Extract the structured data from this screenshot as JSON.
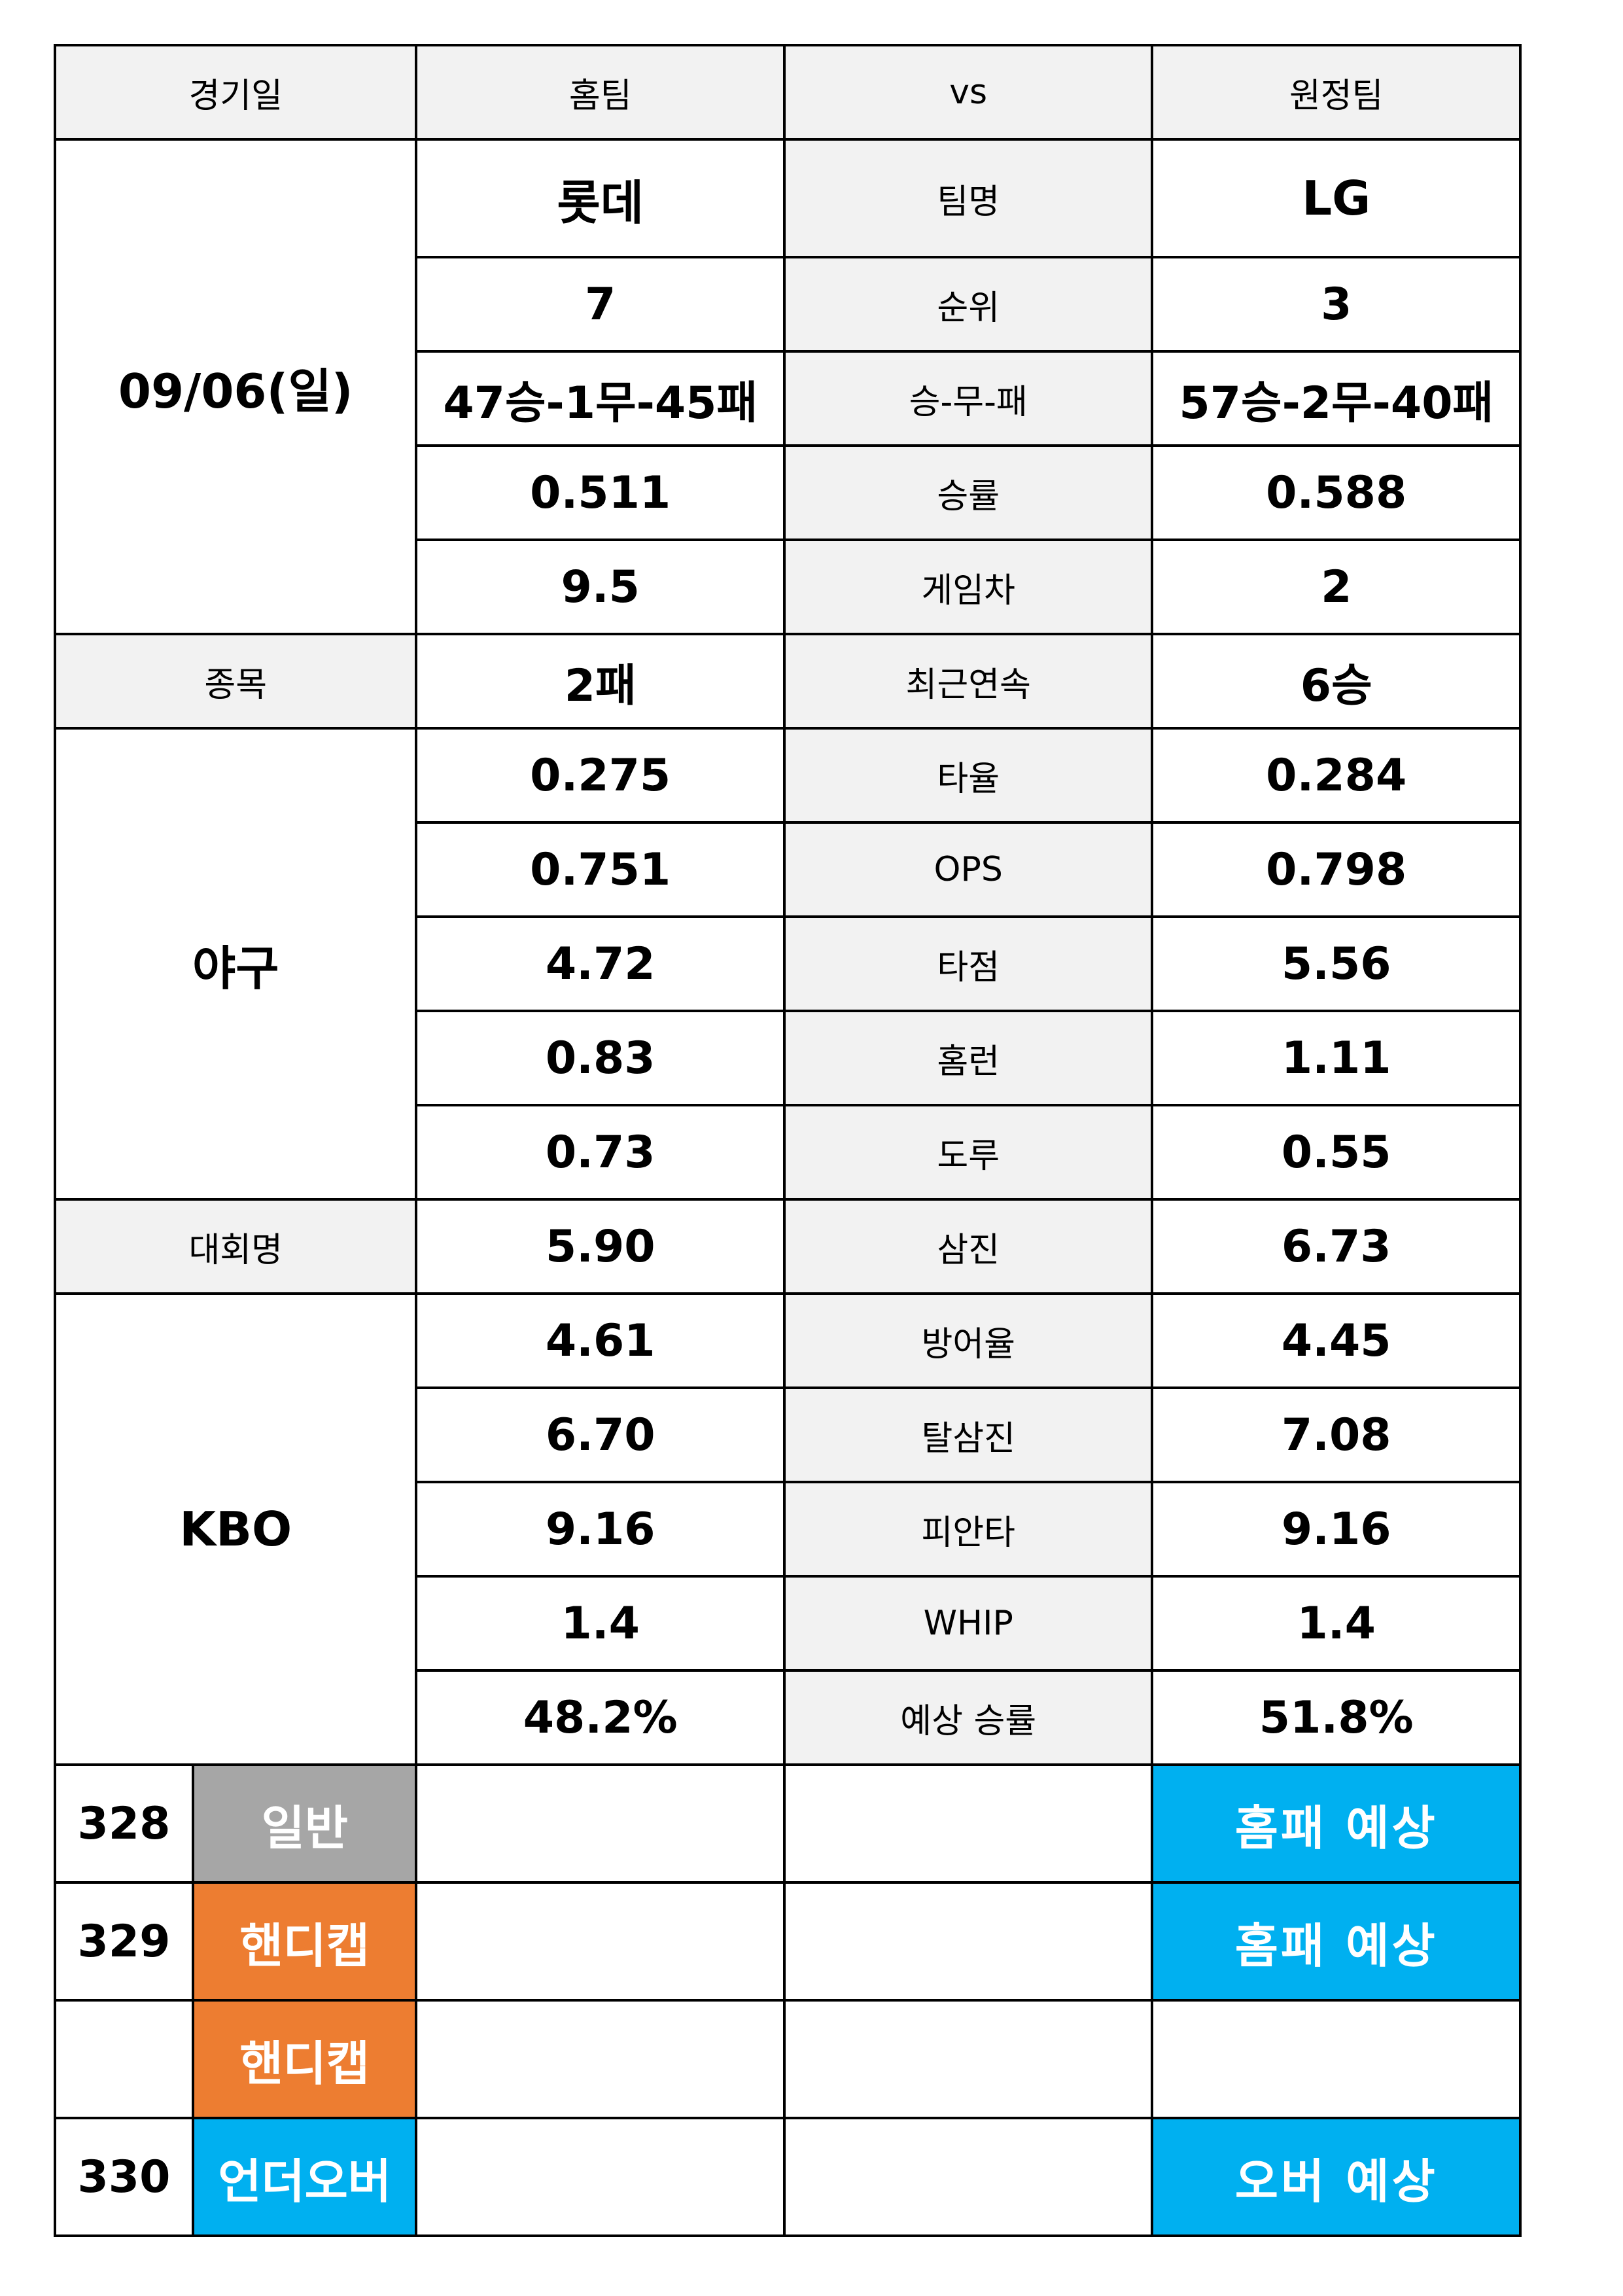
{
  "header": {
    "date": "경기일",
    "home": "홈팀",
    "vs": "vs",
    "away": "원정팀"
  },
  "match": {
    "date": "09/06(일)",
    "sport_label": "종목",
    "sport": "야구",
    "league_label": "대회명",
    "league": "KBO"
  },
  "stats": [
    {
      "home": "롯데",
      "label": "팀명",
      "away": "LG"
    },
    {
      "home": "7",
      "label": "순위",
      "away": "3"
    },
    {
      "home": "47승-1무-45패",
      "label": "승-무-패",
      "away": "57승-2무-40패"
    },
    {
      "home": "0.511",
      "label": "승률",
      "away": "0.588"
    },
    {
      "home": "9.5",
      "label": "게임차",
      "away": "2"
    },
    {
      "home": "2패",
      "label": "최근연속",
      "away": "6승"
    },
    {
      "home": "0.275",
      "label": "타율",
      "away": "0.284"
    },
    {
      "home": "0.751",
      "label": "OPS",
      "away": "0.798"
    },
    {
      "home": "4.72",
      "label": "타점",
      "away": "5.56"
    },
    {
      "home": "0.83",
      "label": "홈런",
      "away": "1.11"
    },
    {
      "home": "0.73",
      "label": "도루",
      "away": "0.55"
    },
    {
      "home": "5.90",
      "label": "삼진",
      "away": "6.73"
    },
    {
      "home": "4.61",
      "label": "방어율",
      "away": "4.45"
    },
    {
      "home": "6.70",
      "label": "탈삼진",
      "away": "7.08"
    },
    {
      "home": "9.16",
      "label": "피안타",
      "away": "9.16"
    },
    {
      "home": "1.4",
      "label": "WHIP",
      "away": "1.4"
    },
    {
      "home": "48.2%",
      "label": "예상 승률",
      "away": "51.8%"
    }
  ],
  "bets": [
    {
      "number": "328",
      "type": "일반",
      "type_color": "#a6a6a6",
      "prediction": "홈패 예상"
    },
    {
      "number": "329",
      "type": "핸디캡",
      "type_color": "#ed7d31",
      "prediction": "홈패 예상"
    },
    {
      "number": "",
      "type": "핸디캡",
      "type_color": "#ed7d31",
      "prediction": ""
    },
    {
      "number": "330",
      "type": "언더오버",
      "type_color": "#00b0f0",
      "prediction": "오버 예상"
    }
  ],
  "colors": {
    "label_bg": "#f2f2f2",
    "prediction_bg": "#00b0f0"
  }
}
